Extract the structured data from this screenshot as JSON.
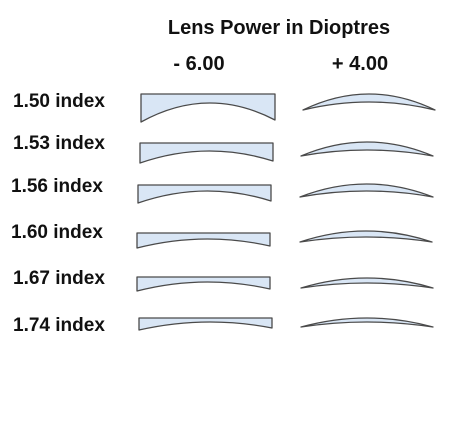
{
  "diagram": {
    "title": "Lens Power in Dioptres",
    "columns": [
      {
        "label": "- 6.00",
        "lens_type": "minus"
      },
      {
        "label": "+ 4.00",
        "lens_type": "plus"
      }
    ],
    "rows": [
      {
        "label": "1.50 index"
      },
      {
        "label": "1.53 index"
      },
      {
        "label": "1.56 index"
      },
      {
        "label": "1.60 index"
      },
      {
        "label": "1.67 index"
      },
      {
        "label": "1.74 index"
      }
    ],
    "colors": {
      "lens_fill": "#d9e6f5",
      "lens_stroke": "#4a4a4a",
      "text": "#111111",
      "background": "#ffffff"
    }
  }
}
